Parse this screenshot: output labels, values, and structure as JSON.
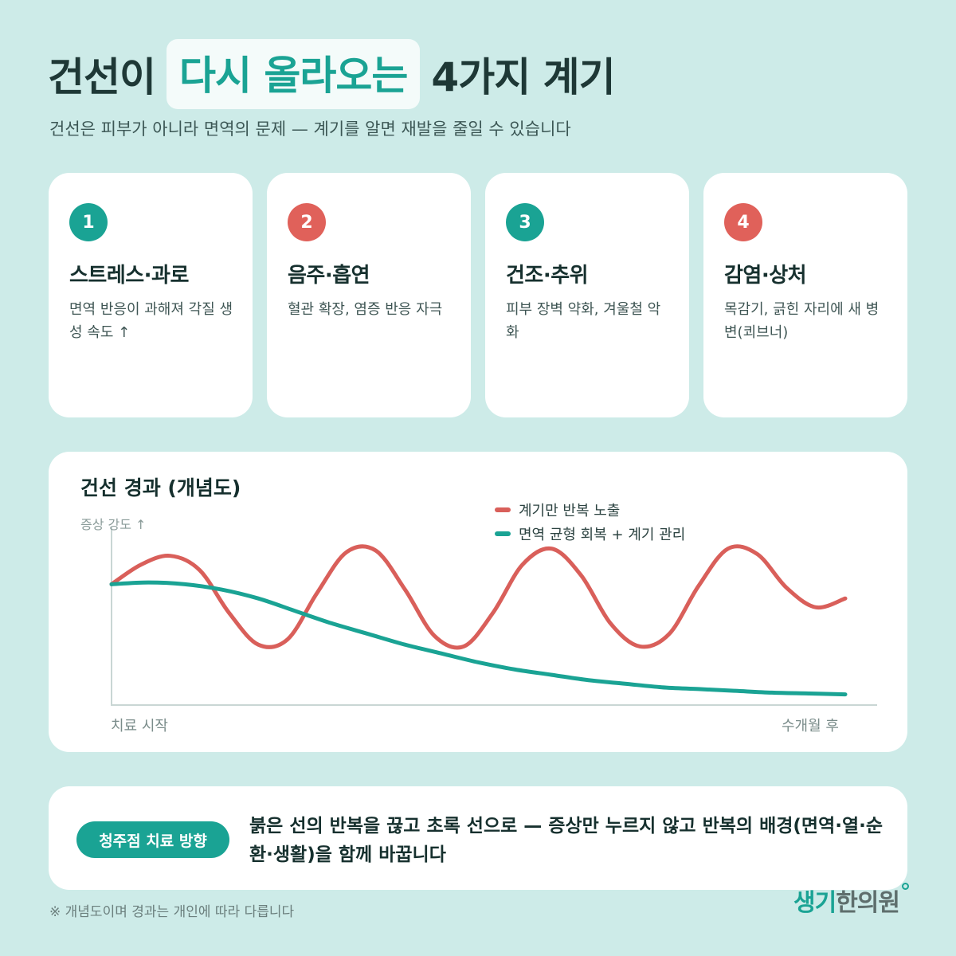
{
  "header": {
    "title_part1": "건선이",
    "title_highlight": "다시 올라오는",
    "title_part2": "4가지 계기",
    "subtitle": "건선은 피부가 아니라 면역의 문제 — 계기를 알면 재발을 줄일 수 있습니다"
  },
  "cards": [
    {
      "number": "1",
      "title": "스트레스·과로",
      "desc": "면역 반응이 과해져 각질 생성 속도 ↑",
      "color": "#1aa394"
    },
    {
      "number": "2",
      "title": "음주·흡연",
      "desc": "혈관 확장, 염증 반응 자극",
      "color": "#e0615a"
    },
    {
      "number": "3",
      "title": "건조·추위",
      "desc": "피부 장벽 약화, 겨울철 악화",
      "color": "#1aa394"
    },
    {
      "number": "4",
      "title": "감염·상처",
      "desc": "목감기, 긁힌 자리에 새 병변(쾨브너)",
      "color": "#e0615a"
    }
  ],
  "chart_data": {
    "type": "line",
    "title": "건선 경과 (개념도)",
    "ylabel": "증상 강도 ↑",
    "x_start_label": "치료 시작",
    "x_end_label": "수개월 후",
    "series": [
      {
        "name": "계기만 반복 노출",
        "color": "#d95f5a",
        "x": [
          0,
          0.04,
          0.08,
          0.12,
          0.16,
          0.2,
          0.24,
          0.28,
          0.32,
          0.36,
          0.4,
          0.44,
          0.48,
          0.52,
          0.56,
          0.6,
          0.64,
          0.68,
          0.72,
          0.76,
          0.8,
          0.84,
          0.88,
          0.92,
          0.96,
          1.0
        ],
        "values": [
          0.68,
          0.79,
          0.84,
          0.76,
          0.52,
          0.34,
          0.37,
          0.63,
          0.86,
          0.87,
          0.65,
          0.39,
          0.33,
          0.52,
          0.79,
          0.88,
          0.73,
          0.46,
          0.33,
          0.4,
          0.67,
          0.88,
          0.85,
          0.66,
          0.55,
          0.6
        ]
      },
      {
        "name": "면역 균형 회복 + 계기 관리",
        "color": "#1aa394",
        "x": [
          0,
          0.05,
          0.1,
          0.15,
          0.2,
          0.25,
          0.3,
          0.35,
          0.4,
          0.45,
          0.5,
          0.55,
          0.6,
          0.65,
          0.7,
          0.75,
          0.8,
          0.85,
          0.9,
          0.95,
          1.0
        ],
        "values": [
          0.68,
          0.69,
          0.68,
          0.65,
          0.6,
          0.53,
          0.46,
          0.4,
          0.34,
          0.29,
          0.24,
          0.2,
          0.17,
          0.14,
          0.12,
          0.1,
          0.09,
          0.08,
          0.07,
          0.065,
          0.06
        ]
      }
    ],
    "ylim": [
      0,
      1
    ],
    "axis_color": "#c9d6d4"
  },
  "bottom": {
    "pill_label": "청주점 치료 방향",
    "message": "붉은 선의 반복을 끊고 초록 선으로 — 증상만 누르지 않고 반복의 배경(면역·열·순환·생활)을 함께 바꿉니다"
  },
  "footnote": "※ 개념도이며 경과는 개인에 따라 다릅니다",
  "logo": {
    "part_a": "생기",
    "part_b": "한의원"
  }
}
